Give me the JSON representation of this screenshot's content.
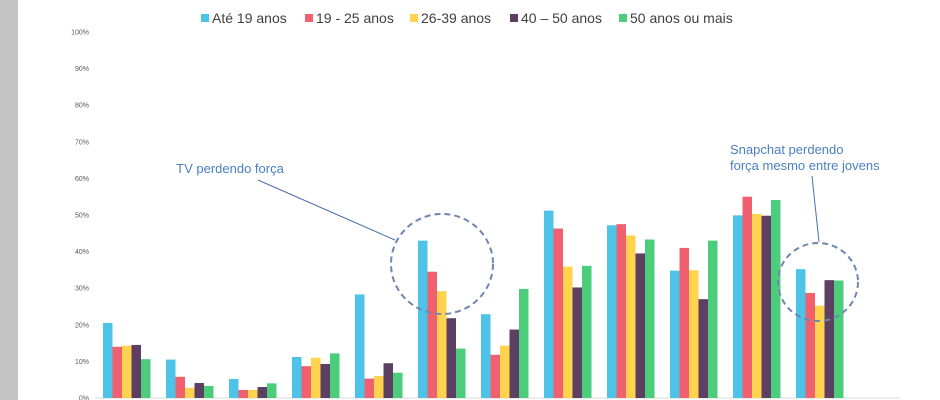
{
  "chart_data": {
    "type": "bar",
    "categories": [
      "",
      "",
      "",
      "",
      "",
      "",
      "",
      "",
      "",
      "",
      "",
      "",
      ""
    ],
    "series": [
      {
        "name": "Até 19 anos",
        "color": "#4dc3e8",
        "values": [
          20.5,
          10.5,
          5.2,
          11.2,
          28.3,
          43.0,
          22.9,
          51.2,
          47.2,
          34.8,
          49.9,
          35.2,
          null
        ]
      },
      {
        "name": "19 - 25 anos",
        "color": "#f0606e",
        "values": [
          14.0,
          5.8,
          2.2,
          8.7,
          5.3,
          34.5,
          11.8,
          46.3,
          47.5,
          41.0,
          55.0,
          28.7,
          null
        ]
      },
      {
        "name": "26-39 anos",
        "color": "#ffd34e",
        "values": [
          14.3,
          2.8,
          2.2,
          11.0,
          6.0,
          29.2,
          14.3,
          35.9,
          44.4,
          34.9,
          50.3,
          25.2,
          null
        ]
      },
      {
        "name": "40 – 50 anos",
        "color": "#5c3f63",
        "values": [
          14.5,
          4.1,
          3.0,
          9.3,
          9.5,
          21.8,
          18.7,
          30.2,
          39.5,
          27.0,
          49.8,
          32.2,
          null
        ]
      },
      {
        "name": "50 anos ou mais",
        "color": "#4ccd7c",
        "values": [
          10.6,
          3.3,
          4.0,
          12.2,
          6.9,
          13.5,
          29.8,
          36.1,
          43.3,
          43.0,
          54.1,
          32.1,
          null
        ]
      }
    ],
    "y_ticks": [
      "100%",
      "90%",
      "80%",
      "70%",
      "60%",
      "50%",
      "40%",
      "30%",
      "20%",
      "10%",
      "0%"
    ],
    "ylim": [
      0,
      100
    ],
    "legend_position": "top",
    "grid": false,
    "annotations": [
      {
        "text_lines": [
          "TV perdendo força"
        ],
        "target_group": 5
      },
      {
        "text_lines": [
          "Snapchat perdendo",
          "força mesmo entre jovens"
        ],
        "target_group": 11
      }
    ]
  }
}
